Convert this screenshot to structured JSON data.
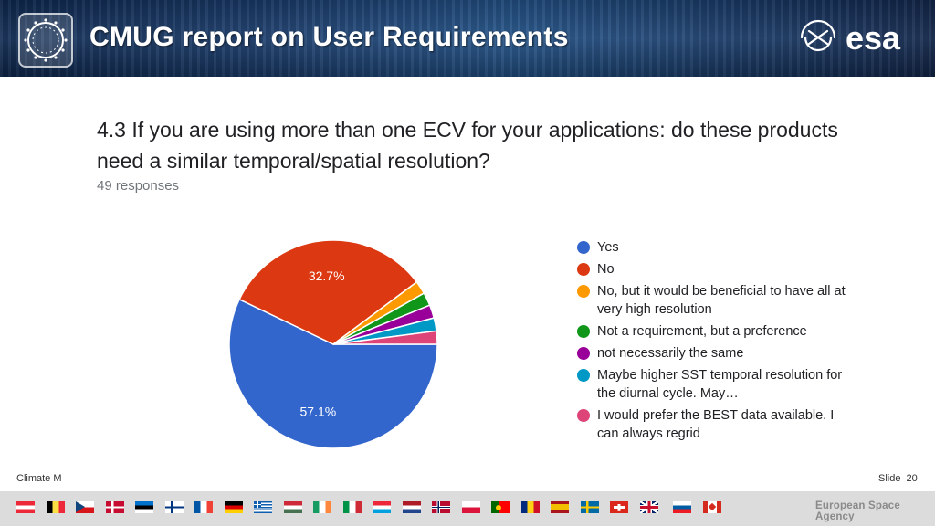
{
  "header": {
    "title": "CMUG report on User Requirements",
    "esa_logo_text": "esa"
  },
  "question": {
    "text": "4.3  If you are using more than one ECV for your applications: do these products need a similar temporal/spatial resolution?",
    "responses": "49 responses"
  },
  "chart_data": {
    "type": "pie",
    "slices": [
      {
        "label": "Yes",
        "value": 57.1,
        "color": "#3366cc"
      },
      {
        "label": "No",
        "value": 32.7,
        "color": "#dc3912"
      },
      {
        "label": "No, but it would be beneficial to have all at very high resolution",
        "value": 2.04,
        "color": "#ff9900"
      },
      {
        "label": "Not a requirement, but a preference",
        "value": 2.04,
        "color": "#109618"
      },
      {
        "label": "not necessarily the same",
        "value": 2.04,
        "color": "#990099"
      },
      {
        "label": "Maybe higher SST temporal resolution for the diurnal cycle. May…",
        "value": 2.04,
        "color": "#0099c6"
      },
      {
        "label": "I would prefer the BEST data available. I can always regrid",
        "value": 2.04,
        "color": "#dd4477"
      }
    ],
    "slice_labels": [
      "57.1%",
      "32.7%"
    ],
    "legend_position": "right"
  },
  "footer": {
    "left_text": "Climate M",
    "slide_label": "Slide",
    "slide_number": "20",
    "agency": "European Space Agency",
    "flags": [
      "austria-flag",
      "belgium-flag",
      "czech-flag",
      "denmark-flag",
      "estonia-flag",
      "finland-flag",
      "france-flag",
      "germany-flag",
      "greece-flag",
      "hungary-flag",
      "ireland-flag",
      "italy-flag",
      "luxembourg-flag",
      "netherlands-flag",
      "norway-flag",
      "poland-flag",
      "portugal-flag",
      "romania-flag",
      "spain-flag",
      "sweden-flag",
      "switzerland-flag",
      "uk-flag",
      "slovenia-flag",
      "canada-flag"
    ]
  }
}
